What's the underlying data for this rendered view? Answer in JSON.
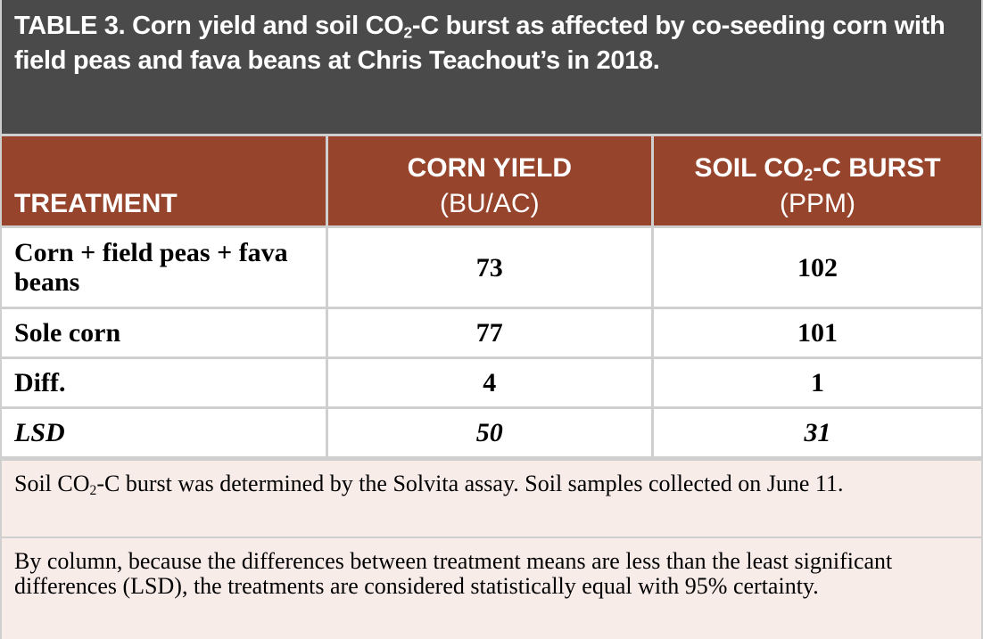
{
  "title": {
    "before": "TABLE 3. Corn yield and soil CO",
    "sub": "2",
    "after": "-C burst as affected by co-seeding corn with field peas and fava beans at Chris Teachout’s in 2018."
  },
  "table": {
    "header": [
      {
        "name": "TREATMENT"
      },
      {
        "name": "CORN YIELD",
        "unit": "(BU/AC)"
      },
      {
        "before": "SOIL CO",
        "sub": "2",
        "after": "-C BURST",
        "unit": "(PPM)"
      }
    ],
    "rows": [
      [
        "Corn + field peas + fava beans",
        73,
        102
      ],
      [
        "Sole corn",
        77,
        101
      ],
      [
        "Diff.",
        4,
        1
      ],
      [
        "LSD",
        50,
        31
      ]
    ]
  },
  "notes": [
    {
      "before": "Soil CO",
      "sub": "2",
      "after": "-C burst was determined by the Solvita assay. Soil samples collected on June 11."
    },
    {
      "text": "By column, because the differences between treatment means are less than the least significant differences (LSD), the treatments are considered statistically equal with 95% certainty."
    }
  ]
}
